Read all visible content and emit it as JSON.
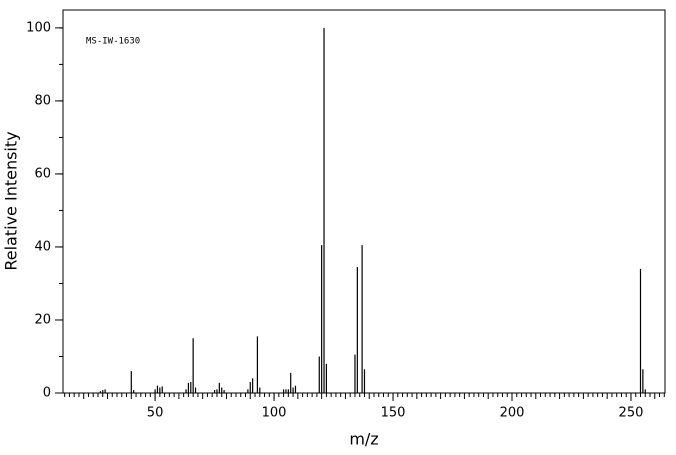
{
  "chart_data": {
    "type": "stick",
    "annotation": "MS-IW-1630",
    "xlabel": "m/z",
    "ylabel": "Relative Intensity",
    "xlim": [
      11.3,
      264.3
    ],
    "ylim": [
      0,
      104.9
    ],
    "xticks": [
      50,
      100,
      150,
      200,
      250
    ],
    "yticks": [
      0,
      20,
      40,
      60,
      80,
      100
    ],
    "color": "#000000",
    "x": [
      27,
      28,
      29,
      40,
      41,
      50,
      51,
      52,
      53,
      63,
      64,
      65,
      66,
      67,
      75,
      76,
      77,
      78,
      79,
      89,
      90,
      91,
      93,
      94,
      104,
      105,
      106,
      107,
      108,
      109,
      119,
      120,
      121,
      122,
      134,
      135,
      137,
      138,
      254,
      255,
      256
    ],
    "values": [
      0.5,
      0.8,
      1,
      6,
      0.8,
      1,
      2,
      1.5,
      1.8,
      1,
      2.8,
      3,
      15,
      1.5,
      0.8,
      1,
      2.8,
      1.5,
      0.8,
      1,
      3,
      4,
      15.5,
      1.5,
      1,
      1,
      1,
      5.5,
      1.5,
      2,
      10,
      40.5,
      100,
      8,
      10.5,
      34.5,
      40.5,
      6.5,
      34,
      6.5,
      1
    ]
  }
}
